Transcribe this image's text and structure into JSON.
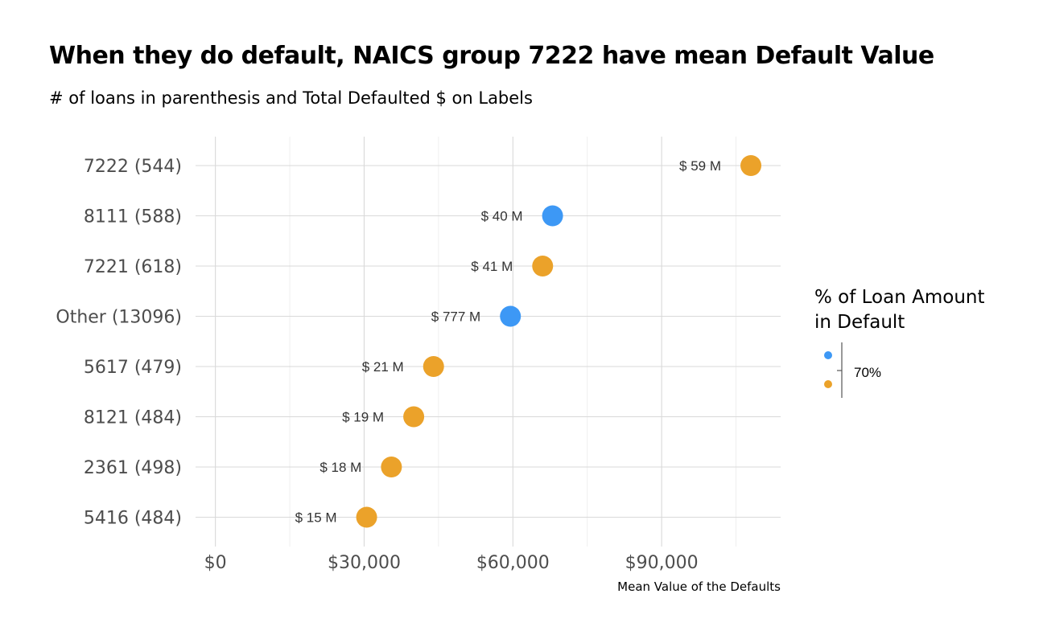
{
  "chart_data": {
    "type": "scatter",
    "title": "When they do default, NAICS group 7222 have mean Default Value",
    "subtitle": "# of loans in parenthesis and Total Defaulted $ on Labels",
    "xlabel": "Mean Value of the Defaults",
    "ylabel": "",
    "xlim": [
      -4000,
      114000
    ],
    "x_ticks": [
      0,
      30000,
      60000,
      90000
    ],
    "x_tick_labels": [
      "$0",
      "$30,000",
      "$60,000",
      "$90,000"
    ],
    "grid": true,
    "categories": [
      "7222 (544)",
      "8111 (588)",
      "7221 (618)",
      "Other (13096)",
      "5617 (479)",
      "8121 (484)",
      "2361 (498)",
      "5416 (484)"
    ],
    "values": [
      108000,
      68000,
      66000,
      59500,
      44000,
      40000,
      35500,
      30500
    ],
    "labels": [
      "$ 59 M",
      "$ 40 M",
      "$ 41 M",
      "$ 777 M",
      "$ 21 M",
      "$ 19 M",
      "$ 18 M",
      "$ 15 M"
    ],
    "above_70pct": [
      true,
      false,
      true,
      false,
      true,
      true,
      true,
      true
    ],
    "colors": {
      "above": "#eba22a",
      "below": "#3d98f5"
    },
    "legend": {
      "title_line1": "% of Loan Amount",
      "title_line2": "in Default",
      "break_label": "70%",
      "placement": "right"
    }
  }
}
